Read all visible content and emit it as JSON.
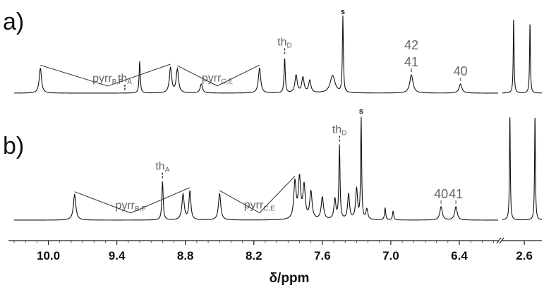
{
  "chart_data": {
    "type": "line",
    "xlabel": "δ/ppm",
    "x_ticks": [
      {
        "value": 10.0,
        "label": "10.0"
      },
      {
        "value": 9.4,
        "label": "9.4"
      },
      {
        "value": 8.8,
        "label": "8.8"
      },
      {
        "value": 8.2,
        "label": "8.2"
      },
      {
        "value": 7.6,
        "label": "7.6"
      },
      {
        "value": 7.0,
        "label": "7.0"
      },
      {
        "value": 6.4,
        "label": "6.4"
      },
      {
        "value": 2.6,
        "label": "2.6"
      }
    ],
    "x_axis": {
      "reversed": true,
      "main_range": [
        10.3,
        6.06
      ],
      "inset_range": [
        2.95,
        2.32
      ],
      "axis_break_between": [
        6.06,
        2.95
      ]
    },
    "grid": false,
    "panels": [
      {
        "label": "a)",
        "peaks": [
          {
            "x": 10.07,
            "h": 0.33,
            "w": 0.012
          },
          {
            "x": 9.2,
            "h": 0.42,
            "w": 0.006
          },
          {
            "x": 8.93,
            "h": 0.33,
            "w": 0.012
          },
          {
            "x": 8.87,
            "h": 0.31,
            "w": 0.012
          },
          {
            "x": 8.66,
            "h": 0.12,
            "w": 0.012
          },
          {
            "x": 8.15,
            "h": 0.33,
            "w": 0.012
          },
          {
            "x": 7.93,
            "h": 0.47,
            "w": 0.006
          },
          {
            "x": 7.83,
            "h": 0.23,
            "w": 0.012
          },
          {
            "x": 7.77,
            "h": 0.2,
            "w": 0.012
          },
          {
            "x": 7.71,
            "h": 0.16,
            "w": 0.012
          },
          {
            "x": 7.51,
            "h": 0.23,
            "w": 0.025
          },
          {
            "x": 7.42,
            "h": 1.0,
            "w": 0.005
          },
          {
            "x": 6.82,
            "h": 0.24,
            "w": 0.017
          },
          {
            "x": 6.39,
            "h": 0.12,
            "w": 0.015
          },
          {
            "x": 2.77,
            "h": 0.96,
            "w": 0.008
          },
          {
            "x": 2.51,
            "h": 0.9,
            "w": 0.008
          }
        ],
        "annotations": [
          {
            "text": "pyrr",
            "sub": "B,F",
            "x": 9.48
          },
          {
            "text": "th",
            "sub": "A",
            "x": 9.33
          },
          {
            "text": "pyrr",
            "sub": "C,E",
            "x": 8.52
          },
          {
            "text": "th",
            "sub": "D",
            "x": 7.93
          },
          {
            "text": "s",
            "sub": "",
            "x": 7.42
          },
          {
            "text": "42",
            "sub": "",
            "x": 6.82
          },
          {
            "text": "41",
            "sub": "",
            "x": 6.82
          },
          {
            "text": "40",
            "sub": "",
            "x": 6.39
          }
        ]
      },
      {
        "label": "b)",
        "peaks": [
          {
            "x": 9.77,
            "h": 0.25,
            "w": 0.013
          },
          {
            "x": 9.0,
            "h": 0.38,
            "w": 0.007
          },
          {
            "x": 8.82,
            "h": 0.25,
            "w": 0.012
          },
          {
            "x": 8.76,
            "h": 0.28,
            "w": 0.01
          },
          {
            "x": 8.5,
            "h": 0.26,
            "w": 0.012
          },
          {
            "x": 7.84,
            "h": 0.36,
            "w": 0.012
          },
          {
            "x": 7.8,
            "h": 0.39,
            "w": 0.012
          },
          {
            "x": 7.76,
            "h": 0.32,
            "w": 0.012
          },
          {
            "x": 7.7,
            "h": 0.27,
            "w": 0.012
          },
          {
            "x": 7.6,
            "h": 0.22,
            "w": 0.012
          },
          {
            "x": 7.49,
            "h": 0.2,
            "w": 0.01
          },
          {
            "x": 7.45,
            "h": 0.72,
            "w": 0.006
          },
          {
            "x": 7.37,
            "h": 0.25,
            "w": 0.01
          },
          {
            "x": 7.3,
            "h": 0.3,
            "w": 0.01
          },
          {
            "x": 7.26,
            "h": 1.0,
            "w": 0.005
          },
          {
            "x": 7.21,
            "h": 0.1,
            "w": 0.01
          },
          {
            "x": 7.05,
            "h": 0.12,
            "w": 0.006
          },
          {
            "x": 6.98,
            "h": 0.09,
            "w": 0.006
          },
          {
            "x": 6.56,
            "h": 0.13,
            "w": 0.013
          },
          {
            "x": 6.43,
            "h": 0.13,
            "w": 0.013
          },
          {
            "x": 2.83,
            "h": 1.0,
            "w": 0.008
          },
          {
            "x": 2.43,
            "h": 1.0,
            "w": 0.008
          }
        ],
        "annotations": [
          {
            "text": "pyrr",
            "sub": "B,F",
            "x": 9.28
          },
          {
            "text": "th",
            "sub": "A",
            "x": 9.0
          },
          {
            "text": "pyrr",
            "sub": "C,E",
            "x": 8.15
          },
          {
            "text": "th",
            "sub": "D",
            "x": 7.45
          },
          {
            "text": "s",
            "sub": "",
            "x": 7.26
          },
          {
            "text": "40",
            "sub": "",
            "x": 6.56
          },
          {
            "text": "41",
            "sub": "",
            "x": 6.43
          }
        ]
      }
    ]
  }
}
